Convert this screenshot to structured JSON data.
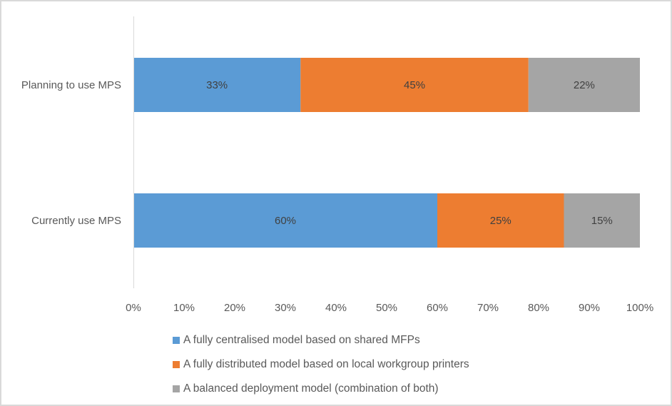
{
  "chart_data": {
    "type": "bar",
    "orientation": "horizontal",
    "stacked": "percent",
    "title": "",
    "xlabel": "",
    "ylabel": "",
    "categories": [
      "Planning to use MPS",
      "Currently use MPS"
    ],
    "series": [
      {
        "name": "A fully centralised model based on shared MFPs",
        "color": "#5b9bd5",
        "values": [
          33,
          60
        ],
        "labels": [
          "33%",
          "60%"
        ]
      },
      {
        "name": "A fully distributed model based on local workgroup printers",
        "color": "#ed7d31",
        "values": [
          45,
          25
        ],
        "labels": [
          "45%",
          "25%"
        ]
      },
      {
        "name": "A balanced deployment model (combination of both)",
        "color": "#a5a5a5",
        "values": [
          22,
          15
        ],
        "labels": [
          "22%",
          "15%"
        ]
      }
    ],
    "xlim": [
      0,
      100
    ],
    "xticks": [
      "0%",
      "10%",
      "20%",
      "30%",
      "40%",
      "50%",
      "60%",
      "70%",
      "80%",
      "90%",
      "100%"
    ],
    "grid": false,
    "legend_position": "bottom"
  }
}
